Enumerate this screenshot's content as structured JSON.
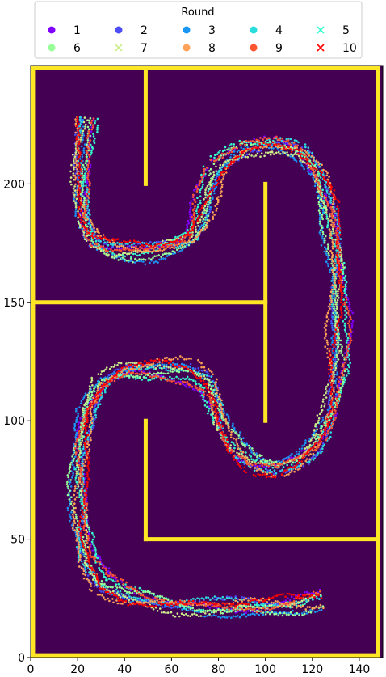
{
  "chart_data": {
    "type": "scatter",
    "xlim": [
      0,
      150
    ],
    "ylim": [
      0,
      250
    ],
    "x_ticks": [
      0,
      20,
      40,
      60,
      80,
      100,
      120,
      140
    ],
    "y_ticks": [
      0,
      50,
      100,
      150,
      200
    ],
    "x_tick_labels": [
      "0",
      "20",
      "40",
      "60",
      "80",
      "100",
      "120",
      "140"
    ],
    "y_tick_labels": [
      "0",
      "50",
      "100",
      "150",
      "200"
    ],
    "background_color": "#440154",
    "wall_color": "#fde725",
    "legend": {
      "title": "Round",
      "placement": "top-center",
      "columns": 5
    },
    "walls": [
      {
        "x": [
          1,
          148
        ],
        "y": [
          1,
          1
        ]
      },
      {
        "x": [
          1,
          1
        ],
        "y": [
          1,
          249
        ]
      },
      {
        "x": [
          1,
          49
        ],
        "y": [
          249,
          249
        ]
      },
      {
        "x": [
          49,
          148
        ],
        "y": [
          249,
          249
        ]
      },
      {
        "x": [
          148,
          148
        ],
        "y": [
          1,
          249
        ]
      },
      {
        "x": [
          49,
          49
        ],
        "y": [
          200,
          249
        ]
      },
      {
        "x": [
          1,
          100
        ],
        "y": [
          150,
          150
        ]
      },
      {
        "x": [
          100,
          100
        ],
        "y": [
          100,
          200
        ]
      },
      {
        "x": [
          49,
          49
        ],
        "y": [
          50,
          100
        ]
      },
      {
        "x": [
          49,
          148
        ],
        "y": [
          50,
          50
        ]
      }
    ],
    "series": [
      {
        "name": "1",
        "color": "#8000ff",
        "marker": "o"
      },
      {
        "name": "2",
        "color": "#4d4df8",
        "marker": "o"
      },
      {
        "name": "3",
        "color": "#1a96f3",
        "marker": "o"
      },
      {
        "name": "4",
        "color": "#2adddd",
        "marker": "o"
      },
      {
        "name": "5",
        "color": "#33ffcc",
        "marker": "x"
      },
      {
        "name": "6",
        "color": "#99ff99",
        "marker": "o"
      },
      {
        "name": "7",
        "color": "#ccee88",
        "marker": "x"
      },
      {
        "name": "8",
        "color": "#ffa256",
        "marker": "o"
      },
      {
        "name": "9",
        "color": "#ff5530",
        "marker": "o"
      },
      {
        "name": "10",
        "color": "#ff0000",
        "marker": "x"
      }
    ],
    "path": [
      [
        22,
        228
      ],
      [
        21,
        215
      ],
      [
        21,
        200
      ],
      [
        22,
        185
      ],
      [
        26,
        176
      ],
      [
        35,
        172
      ],
      [
        50,
        171
      ],
      [
        62,
        173
      ],
      [
        70,
        177
      ],
      [
        74,
        185
      ],
      [
        76,
        195
      ],
      [
        80,
        206
      ],
      [
        90,
        214
      ],
      [
        103,
        217
      ],
      [
        114,
        214
      ],
      [
        122,
        205
      ],
      [
        127,
        190
      ],
      [
        129,
        170
      ],
      [
        130,
        150
      ],
      [
        130,
        125
      ],
      [
        128,
        105
      ],
      [
        123,
        92
      ],
      [
        115,
        84
      ],
      [
        105,
        80
      ],
      [
        95,
        82
      ],
      [
        88,
        88
      ],
      [
        83,
        97
      ],
      [
        80,
        108
      ],
      [
        76,
        117
      ],
      [
        68,
        122
      ],
      [
        55,
        123
      ],
      [
        40,
        122
      ],
      [
        30,
        116
      ],
      [
        24,
        105
      ],
      [
        21,
        90
      ],
      [
        20,
        75
      ],
      [
        20,
        55
      ],
      [
        23,
        40
      ],
      [
        30,
        30
      ],
      [
        42,
        25
      ],
      [
        60,
        22
      ],
      [
        80,
        21
      ],
      [
        100,
        21
      ],
      [
        115,
        22
      ],
      [
        125,
        24
      ]
    ]
  }
}
